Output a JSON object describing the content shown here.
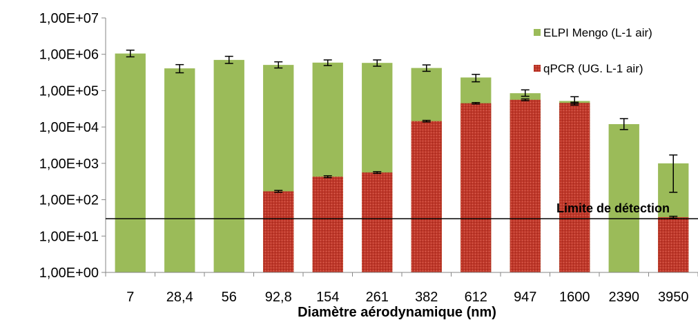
{
  "chart_data": {
    "type": "bar",
    "stacked": false,
    "overlapping_bars": true,
    "y_scale": "log",
    "ylim": [
      1,
      10000000
    ],
    "y_tick_labels": [
      "1,00E+00",
      "1,00E+01",
      "1,00E+02",
      "1,00E+03",
      "1,00E+04",
      "1,00E+05",
      "1,00E+06",
      "1,00E+07"
    ],
    "y_tick_values": [
      1,
      10,
      100,
      1000,
      10000,
      100000,
      1000000,
      10000000
    ],
    "categories": [
      "7",
      "28,4",
      "56",
      "92,8",
      "154",
      "261",
      "382",
      "612",
      "947",
      "1600",
      "2390",
      "3950"
    ],
    "title": "",
    "xlabel": "Diamètre aérodynamique (nm)",
    "ylabel": "",
    "grid": false,
    "legend_position": "top-right",
    "series": [
      {
        "name": "ELPI Mengo (L-1 air)",
        "color": "#9bbb59",
        "values": [
          1050000,
          410000,
          700000,
          510000,
          590000,
          580000,
          420000,
          230000,
          85000,
          52000,
          12000,
          1000
        ],
        "error_low": [
          850000,
          310000,
          560000,
          420000,
          490000,
          470000,
          340000,
          175000,
          70000,
          40000,
          8500,
          160
        ],
        "error_high": [
          1300000,
          520000,
          880000,
          620000,
          700000,
          700000,
          510000,
          280000,
          105000,
          68000,
          17000,
          1700
        ]
      },
      {
        "name": "qPCR (UG. L-1 air)",
        "color": "#c0392b",
        "values": [
          null,
          null,
          null,
          170,
          430,
          560,
          14500,
          45000,
          56000,
          46000,
          null,
          33
        ],
        "error_low": [
          null,
          null,
          null,
          160,
          405,
          530,
          13800,
          43000,
          53000,
          44000,
          null,
          31
        ],
        "error_high": [
          null,
          null,
          null,
          180,
          455,
          590,
          15200,
          47000,
          59000,
          48000,
          null,
          35
        ]
      }
    ],
    "annotations": [
      {
        "type": "horizontal_line",
        "label": "Limite de détection",
        "y_value": 30
      }
    ]
  }
}
